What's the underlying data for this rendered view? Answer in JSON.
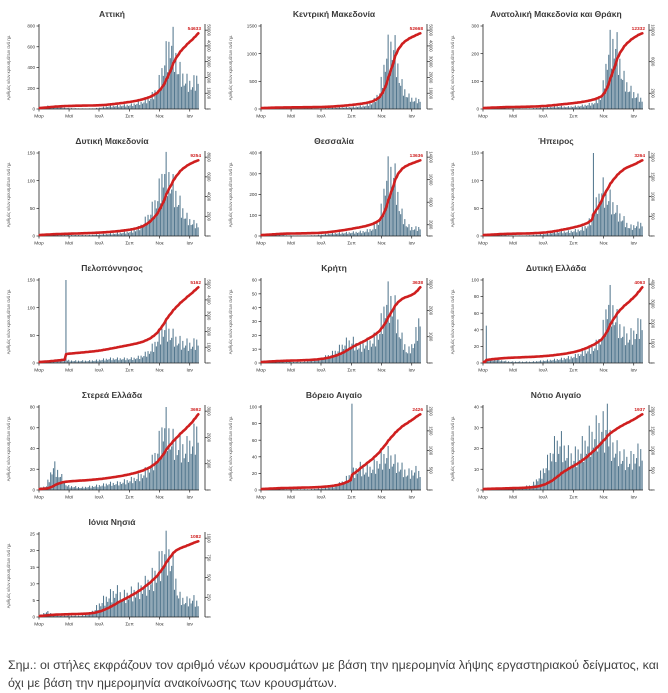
{
  "note": "Σημ.: οι στήλες εκφράζουν τον αριθμό νέων κρουσμάτων με βάση την ημερομηνία λήψης εργαστηριακού δείγματος, και όχι με βάση την ημερομηνία ανακοίνωσης των κρουσμάτων.",
  "axis": {
    "y_left_label": "Αριθμός νέων κρουσμάτων ανά ημ.",
    "x_months": [
      "Μαρ",
      "Μαϊ",
      "Ιουλ",
      "Σεπ",
      "Νοε",
      "Ιαν"
    ],
    "month_fracs": [
      0,
      0.188,
      0.375,
      0.566,
      0.754,
      0.942
    ]
  },
  "colors": {
    "bar": "#54788f",
    "line": "#cf1f1f",
    "title": "#3a3a3a",
    "axis": "#222222",
    "tick_text": "#333333",
    "note_text": "#3f3f3f"
  },
  "chart_data": [
    {
      "type": "bar",
      "title": "Αττική",
      "total_label": "54633",
      "left_ticks": [
        0,
        200,
        400,
        600,
        800
      ],
      "right_ticks": [
        0,
        10000,
        20000,
        30000,
        40000,
        50000
      ],
      "weekly_values": [
        10,
        35,
        30,
        20,
        12,
        8,
        6,
        5,
        8,
        20,
        35,
        40,
        45,
        50,
        70,
        90,
        140,
        260,
        600,
        870,
        480,
        350,
        300,
        430
      ],
      "spikes": []
    },
    {
      "type": "bar",
      "title": "Κεντρική Μακεδονία",
      "total_label": "52668",
      "left_ticks": [
        0,
        500,
        1000,
        1500
      ],
      "right_ticks": [
        0,
        10000,
        20000,
        30000,
        40000,
        50000
      ],
      "weekly_values": [
        5,
        15,
        12,
        8,
        5,
        4,
        4,
        5,
        8,
        15,
        25,
        35,
        40,
        45,
        60,
        80,
        150,
        400,
        1300,
        1520,
        600,
        300,
        200,
        220
      ],
      "spikes": []
    },
    {
      "type": "bar",
      "title": "Ανατολική Μακεδονία και Θράκη",
      "total_label": "12332",
      "left_ticks": [
        0,
        100,
        200,
        300
      ],
      "right_ticks": [
        0,
        2000,
        6000,
        10000
      ],
      "weekly_values": [
        2,
        5,
        4,
        3,
        2,
        2,
        2,
        3,
        5,
        8,
        10,
        12,
        10,
        12,
        15,
        20,
        30,
        60,
        280,
        310,
        150,
        90,
        60,
        40
      ],
      "spikes": []
    },
    {
      "type": "bar",
      "title": "Δυτική Μακεδονία",
      "total_label": "9254",
      "left_ticks": [
        0,
        50,
        100,
        150
      ],
      "right_ticks": [
        0,
        2000,
        4000,
        6000,
        8000
      ],
      "weekly_values": [
        2,
        4,
        3,
        2,
        2,
        2,
        2,
        2,
        3,
        4,
        5,
        6,
        8,
        10,
        15,
        30,
        55,
        90,
        160,
        120,
        80,
        45,
        30,
        25
      ],
      "spikes": []
    },
    {
      "type": "bar",
      "title": "Θεσσαλία",
      "total_label": "13636",
      "left_ticks": [
        0,
        100,
        200,
        300,
        400
      ],
      "right_ticks": [
        0,
        2000,
        6000,
        10000,
        14000
      ],
      "weekly_values": [
        3,
        8,
        10,
        5,
        3,
        2,
        2,
        3,
        5,
        10,
        15,
        18,
        20,
        22,
        25,
        30,
        45,
        100,
        380,
        400,
        150,
        60,
        45,
        55
      ],
      "spikes": []
    },
    {
      "type": "bar",
      "title": "Ήπειρος",
      "total_label": "3264",
      "left_ticks": [
        0,
        50,
        100,
        150
      ],
      "right_ticks": [
        0,
        500,
        1000,
        1500,
        2000
      ],
      "weekly_values": [
        1,
        3,
        3,
        2,
        1,
        1,
        1,
        2,
        3,
        5,
        8,
        10,
        10,
        12,
        15,
        25,
        60,
        110,
        90,
        60,
        40,
        20,
        25,
        30
      ],
      "spikes": [
        {
          "pos": 0.69,
          "val": 150
        }
      ]
    },
    {
      "type": "bar",
      "title": "Πελοπόννησος",
      "total_label": "5162",
      "left_ticks": [
        0,
        50,
        100,
        150
      ],
      "right_ticks": [
        0,
        1000,
        2000,
        3000,
        4000,
        5000
      ],
      "weekly_values": [
        2,
        4,
        5,
        6,
        6,
        5,
        5,
        5,
        6,
        8,
        10,
        10,
        10,
        10,
        12,
        18,
        30,
        55,
        85,
        65,
        50,
        45,
        42,
        55
      ],
      "spikes": [
        {
          "pos": 0.17,
          "val": 150
        }
      ]
    },
    {
      "type": "bar",
      "title": "Κρήτη",
      "total_label": "3638",
      "left_ticks": [
        0,
        10,
        20,
        30,
        40,
        50,
        60
      ],
      "right_ticks": [
        0,
        1000,
        2000,
        3000
      ],
      "weekly_values": [
        1,
        2,
        2,
        1,
        1,
        1,
        1,
        2,
        3,
        5,
        8,
        12,
        18,
        20,
        15,
        18,
        20,
        30,
        60,
        55,
        25,
        10,
        20,
        50
      ],
      "spikes": []
    },
    {
      "type": "bar",
      "title": "Δυτική Ελλάδα",
      "total_label": "4063",
      "left_ticks": [
        0,
        20,
        40,
        60,
        80,
        100
      ],
      "right_ticks": [
        0,
        1000,
        2000,
        3000,
        4000
      ],
      "weekly_values": [
        3,
        6,
        5,
        3,
        2,
        2,
        2,
        2,
        3,
        4,
        5,
        6,
        8,
        10,
        15,
        20,
        25,
        40,
        100,
        70,
        45,
        40,
        50,
        70
      ],
      "spikes": [
        {
          "pos": 0.02,
          "val": 45
        }
      ]
    },
    {
      "type": "bar",
      "title": "Στερεά Ελλάδα",
      "total_label": "3692",
      "left_ticks": [
        0,
        20,
        40,
        60,
        80
      ],
      "right_ticks": [
        0,
        1000,
        2000,
        3000
      ],
      "weekly_values": [
        2,
        5,
        30,
        18,
        5,
        4,
        3,
        4,
        5,
        6,
        8,
        8,
        10,
        12,
        15,
        20,
        30,
        50,
        85,
        60,
        55,
        50,
        60,
        80
      ],
      "spikes": []
    },
    {
      "type": "bar",
      "title": "Βόρειο Αιγαίο",
      "total_label": "2426",
      "left_ticks": [
        0,
        20,
        40,
        60,
        80,
        100
      ],
      "right_ticks": [
        0,
        500,
        1000,
        1500,
        2000
      ],
      "weekly_values": [
        1,
        2,
        2,
        1,
        1,
        1,
        1,
        1,
        2,
        3,
        5,
        8,
        15,
        25,
        35,
        30,
        35,
        45,
        55,
        45,
        35,
        25,
        30,
        25
      ],
      "spikes": [
        {
          "pos": 0.57,
          "val": 113
        }
      ]
    },
    {
      "type": "bar",
      "title": "Νότιο Αιγαίο",
      "total_label": "1937",
      "left_ticks": [
        0,
        10,
        20,
        30,
        40
      ],
      "right_ticks": [
        0,
        500,
        1000,
        1500,
        2000
      ],
      "weekly_values": [
        1,
        1,
        1,
        1,
        1,
        1,
        2,
        3,
        8,
        15,
        25,
        30,
        22,
        20,
        25,
        30,
        35,
        40,
        30,
        25,
        20,
        18,
        22,
        24
      ],
      "spikes": [
        {
          "pos": 0.78,
          "val": 45
        }
      ]
    },
    {
      "type": "bar",
      "title": "Ιόνια Νησιά",
      "total_label": "1082",
      "left_ticks": [
        0,
        5,
        10,
        15,
        20,
        25
      ],
      "right_ticks": [
        0,
        250,
        500,
        750,
        1000
      ],
      "weekly_values": [
        0.5,
        2,
        1,
        0.5,
        0.5,
        0.5,
        0.5,
        1,
        3,
        6,
        8,
        10,
        8,
        9,
        10,
        12,
        14,
        18,
        27,
        22,
        8,
        6,
        7,
        5
      ],
      "spikes": []
    }
  ]
}
